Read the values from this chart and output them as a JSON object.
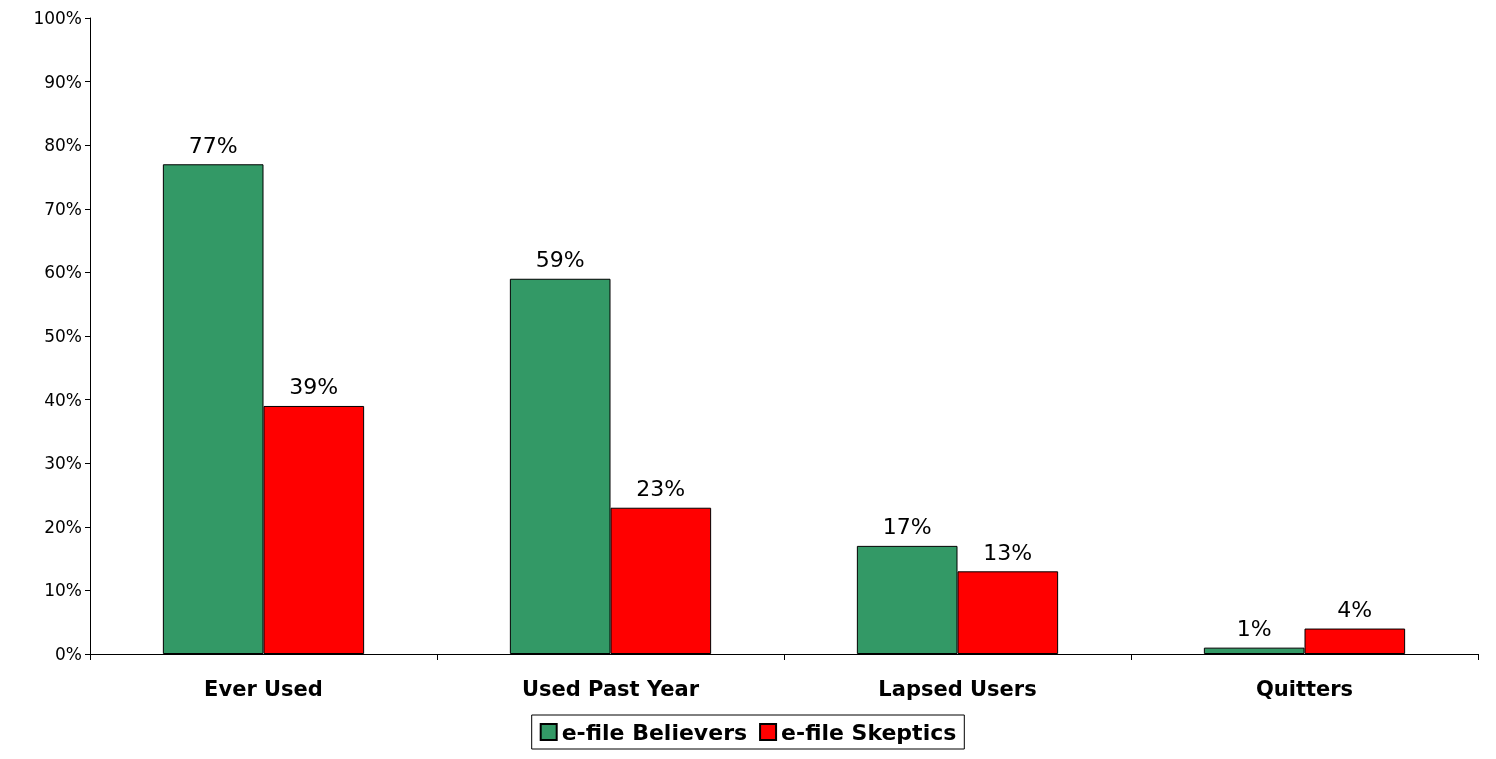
{
  "chart_data": {
    "type": "bar",
    "categories": [
      "Ever Used",
      "Used Past Year",
      "Lapsed Users",
      "Quitters"
    ],
    "series": [
      {
        "name": "e-file Believers",
        "color": "#339966",
        "values": [
          77,
          59,
          17,
          1
        ],
        "value_labels": [
          "77%",
          "59%",
          "17%",
          "1%"
        ]
      },
      {
        "name": "e-file Skeptics",
        "color": "#ff0000",
        "values": [
          39,
          23,
          13,
          4
        ],
        "value_labels": [
          "39%",
          "23%",
          "13%",
          "4%"
        ]
      }
    ],
    "ylim": [
      0,
      100
    ],
    "yticks": [
      {
        "value": 0,
        "label": "0%"
      },
      {
        "value": 10,
        "label": "10%"
      },
      {
        "value": 20,
        "label": "20%"
      },
      {
        "value": 30,
        "label": "30%"
      },
      {
        "value": 40,
        "label": "40%"
      },
      {
        "value": 50,
        "label": "50%"
      },
      {
        "value": 60,
        "label": "60%"
      },
      {
        "value": 70,
        "label": "70%"
      },
      {
        "value": 80,
        "label": "80%"
      },
      {
        "value": 90,
        "label": "90%"
      },
      {
        "value": 100,
        "label": "100%"
      }
    ],
    "grid": false,
    "legend": "bottom"
  }
}
